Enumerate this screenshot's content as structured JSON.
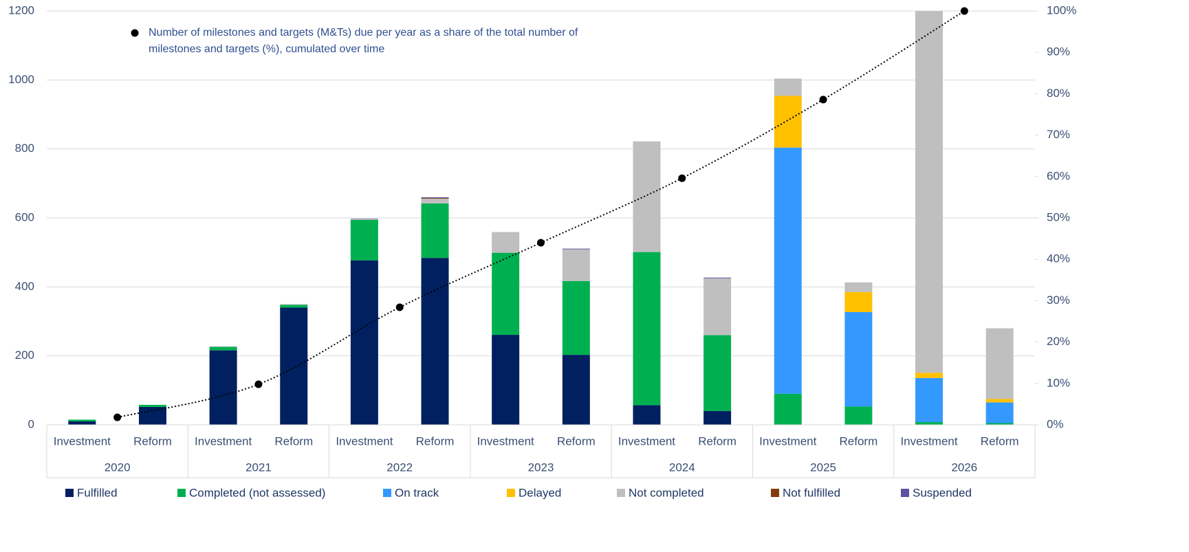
{
  "chart_data": {
    "type": "bar",
    "stacked": true,
    "categories": [
      "Investment",
      "Reform",
      "Investment",
      "Reform",
      "Investment",
      "Reform",
      "Investment",
      "Reform",
      "Investment",
      "Reform",
      "Investment",
      "Reform",
      "Investment",
      "Reform"
    ],
    "groups": [
      "2020",
      "2021",
      "2022",
      "2023",
      "2024",
      "2025",
      "2026"
    ],
    "series": [
      {
        "name": "Fulfilled",
        "color": "#002060",
        "values": [
          10,
          52,
          216,
          340,
          477,
          484,
          261,
          203,
          57,
          40,
          0,
          0,
          0,
          0
        ]
      },
      {
        "name": "Completed (not assessed)",
        "color": "#00b050",
        "values": [
          5,
          6,
          10,
          8,
          117,
          158,
          238,
          214,
          444,
          220,
          90,
          53,
          8,
          5
        ]
      },
      {
        "name": "On track",
        "color": "#3399ff",
        "values": [
          0,
          0,
          0,
          0,
          0,
          0,
          0,
          0,
          0,
          0,
          714,
          274,
          128,
          60
        ]
      },
      {
        "name": "Delayed",
        "color": "#ffc000",
        "values": [
          0,
          0,
          0,
          0,
          0,
          0,
          0,
          0,
          0,
          0,
          150,
          58,
          15,
          10
        ]
      },
      {
        "name": "Not completed",
        "color": "#bfbfbf",
        "values": [
          0,
          0,
          2,
          2,
          3,
          14,
          60,
          92,
          321,
          165,
          50,
          28,
          1049,
          205
        ]
      },
      {
        "name": "Not fulfilled",
        "color": "#843c0c",
        "values": [
          0,
          0,
          0,
          0,
          0,
          2,
          0,
          0,
          0,
          0,
          0,
          0,
          0,
          0
        ]
      },
      {
        "name": "Suspended",
        "color": "#5f52a0",
        "values": [
          0,
          0,
          0,
          0,
          1,
          2,
          0,
          2,
          0,
          2,
          0,
          0,
          0,
          0
        ]
      }
    ],
    "line_series": {
      "type": "line",
      "name": "Number of milestones and targets (M&Ts) due per year as a share of the total number of milestones and targets (%), cumulated over time",
      "color": "#000000",
      "axis": "y2",
      "values": [
        1.8,
        9.8,
        28.4,
        44,
        59.6,
        78.6,
        100
      ]
    },
    "ylim": [
      0,
      1200
    ],
    "yticks": [
      0,
      200,
      400,
      600,
      800,
      1000,
      1200
    ],
    "y2lim": [
      0,
      100
    ],
    "y2ticks": [
      {
        "value": 0,
        "label": "0%"
      },
      {
        "value": 10,
        "label": "10%"
      },
      {
        "value": 20,
        "label": "20%"
      },
      {
        "value": 30,
        "label": "30%"
      },
      {
        "value": 40,
        "label": "40%"
      },
      {
        "value": 50,
        "label": "50%"
      },
      {
        "value": 60,
        "label": "60%"
      },
      {
        "value": 70,
        "label": "70%"
      },
      {
        "value": 80,
        "label": "80%"
      },
      {
        "value": 90,
        "label": "90%"
      },
      {
        "value": 100,
        "label": "100%"
      }
    ],
    "grid": true,
    "legend": "bottom"
  }
}
